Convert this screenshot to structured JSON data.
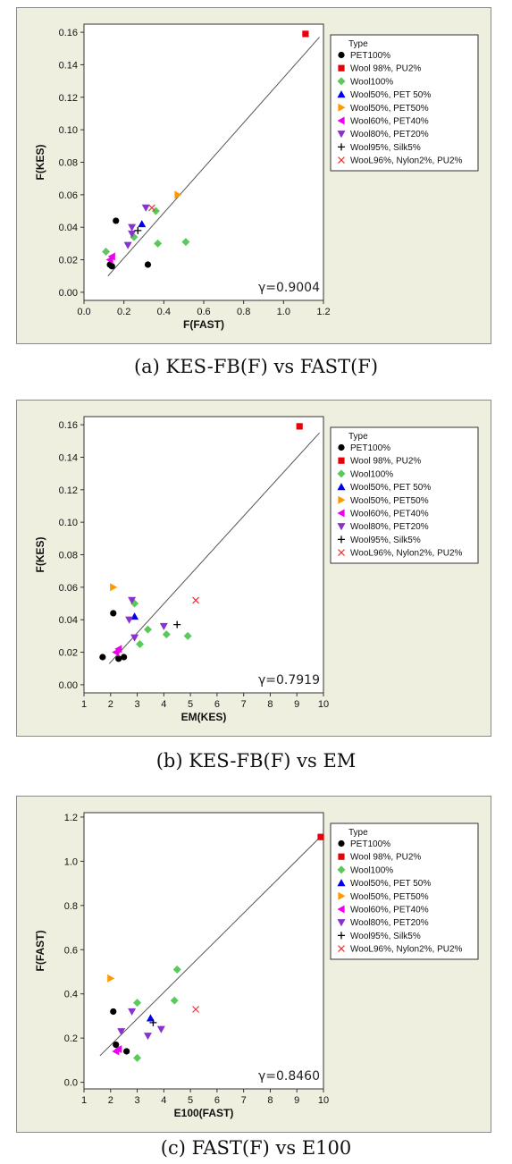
{
  "legend": {
    "title": "Type",
    "entries": [
      {
        "label": "PET100%",
        "marker": "circle",
        "color": "#000000"
      },
      {
        "label": "Wool 98%, PU2%",
        "marker": "square",
        "color": "#e8000b"
      },
      {
        "label": "Wool100%",
        "marker": "diamond",
        "color": "#5bc85b"
      },
      {
        "label": "Wool50%, PET 50%",
        "marker": "triangle-up",
        "color": "#0000ee"
      },
      {
        "label": "Wool50%, PET50%",
        "marker": "triangle-right",
        "color": "#ff9900"
      },
      {
        "label": "Wool60%, PET40%",
        "marker": "triangle-left",
        "color": "#ee00ee"
      },
      {
        "label": "Wool80%, PET20%",
        "marker": "triangle-down",
        "color": "#8833cc"
      },
      {
        "label": "Wool95%, Silk5%",
        "marker": "plus",
        "color": "#000000"
      },
      {
        "label": "WooL96%, Nylon2%, PU2%",
        "marker": "x",
        "color": "#ee3333"
      }
    ]
  },
  "chart_data": [
    {
      "id": "a",
      "type": "scatter",
      "caption": "(a) KES-FB(F) vs FAST(F)",
      "xlabel": "F(FAST)",
      "ylabel": "F(KES)",
      "annotation": "γ=0.9004",
      "xlim": [
        0,
        1.2
      ],
      "ylim": [
        -0.005,
        0.165
      ],
      "xticks": [
        "0.0",
        "0.2",
        "0.4",
        "0.6",
        "0.8",
        "1.0",
        "1.2"
      ],
      "yticks": [
        "0.00",
        "0.02",
        "0.04",
        "0.06",
        "0.08",
        "0.10",
        "0.12",
        "0.14",
        "0.16"
      ],
      "fit_line": {
        "x": [
          0.12,
          1.18
        ],
        "y": [
          0.01,
          0.157
        ]
      },
      "series": [
        {
          "name": "PET100%",
          "points": [
            [
              0.13,
              0.017
            ],
            [
              0.14,
              0.016
            ],
            [
              0.16,
              0.044
            ],
            [
              0.32,
              0.017
            ]
          ]
        },
        {
          "name": "Wool 98%, PU2%",
          "points": [
            [
              1.11,
              0.159
            ]
          ]
        },
        {
          "name": "Wool100%",
          "points": [
            [
              0.11,
              0.025
            ],
            [
              0.36,
              0.05
            ],
            [
              0.37,
              0.03
            ],
            [
              0.51,
              0.031
            ],
            [
              0.25,
              0.034
            ]
          ]
        },
        {
          "name": "Wool50%, PET 50%",
          "points": [
            [
              0.29,
              0.042
            ]
          ]
        },
        {
          "name": "Wool50%, PET50%",
          "points": [
            [
              0.47,
              0.06
            ]
          ]
        },
        {
          "name": "Wool60%, PET40%",
          "points": [
            [
              0.13,
              0.02
            ],
            [
              0.14,
              0.022
            ]
          ]
        },
        {
          "name": "Wool80%, PET20%",
          "points": [
            [
              0.22,
              0.029
            ],
            [
              0.24,
              0.04
            ],
            [
              0.31,
              0.052
            ],
            [
              0.24,
              0.036
            ]
          ]
        },
        {
          "name": "Wool95%, Silk5%",
          "points": [
            [
              0.27,
              0.038
            ]
          ]
        },
        {
          "name": "WooL96%, Nylon2%, PU2%",
          "points": [
            [
              0.34,
              0.052
            ]
          ]
        }
      ]
    },
    {
      "id": "b",
      "type": "scatter",
      "caption": "(b) KES-FB(F) vs EM",
      "xlabel": "EM(KES)",
      "ylabel": "F(KES)",
      "annotation": "γ=0.7919",
      "xlim": [
        1,
        10
      ],
      "ylim": [
        -0.005,
        0.165
      ],
      "xticks": [
        "1",
        "2",
        "3",
        "4",
        "5",
        "6",
        "7",
        "8",
        "9",
        "10"
      ],
      "yticks": [
        "0.00",
        "0.02",
        "0.04",
        "0.06",
        "0.08",
        "0.10",
        "0.12",
        "0.14",
        "0.16"
      ],
      "fit_line": {
        "x": [
          1.95,
          9.85
        ],
        "y": [
          0.013,
          0.155
        ]
      },
      "series": [
        {
          "name": "PET100%",
          "points": [
            [
              1.7,
              0.017
            ],
            [
              2.1,
              0.044
            ],
            [
              2.3,
              0.016
            ],
            [
              2.5,
              0.017
            ]
          ]
        },
        {
          "name": "Wool 98%, PU2%",
          "points": [
            [
              9.1,
              0.159
            ]
          ]
        },
        {
          "name": "Wool100%",
          "points": [
            [
              2.9,
              0.05
            ],
            [
              3.1,
              0.025
            ],
            [
              3.4,
              0.034
            ],
            [
              4.1,
              0.031
            ],
            [
              4.9,
              0.03
            ]
          ]
        },
        {
          "name": "Wool50%, PET 50%",
          "points": [
            [
              2.9,
              0.042
            ]
          ]
        },
        {
          "name": "Wool50%, PET50%",
          "points": [
            [
              2.1,
              0.06
            ]
          ]
        },
        {
          "name": "Wool60%, PET40%",
          "points": [
            [
              2.2,
              0.02
            ],
            [
              2.3,
              0.022
            ]
          ]
        },
        {
          "name": "Wool80%, PET20%",
          "points": [
            [
              2.7,
              0.04
            ],
            [
              2.8,
              0.052
            ],
            [
              2.9,
              0.029
            ],
            [
              4.0,
              0.036
            ]
          ]
        },
        {
          "name": "Wool95%, Silk5%",
          "points": [
            [
              4.5,
              0.037
            ]
          ]
        },
        {
          "name": "WooL96%, Nylon2%, PU2%",
          "points": [
            [
              5.2,
              0.052
            ]
          ]
        }
      ]
    },
    {
      "id": "c",
      "type": "scatter",
      "caption": "(c) FAST(F) vs E100",
      "xlabel": "E100(FAST)",
      "ylabel": "F(FAST)",
      "annotation": "γ=0.8460",
      "xlim": [
        1,
        10
      ],
      "ylim": [
        -0.03,
        1.22
      ],
      "xticks": [
        "1",
        "2",
        "3",
        "4",
        "5",
        "6",
        "7",
        "8",
        "9",
        "10"
      ],
      "yticks": [
        "0.0",
        "0.2",
        "0.4",
        "0.6",
        "0.8",
        "1.0",
        "1.2"
      ],
      "fit_line": {
        "x": [
          1.6,
          9.8
        ],
        "y": [
          0.12,
          1.1
        ]
      },
      "series": [
        {
          "name": "PET100%",
          "points": [
            [
              2.1,
              0.32
            ],
            [
              2.2,
              0.17
            ],
            [
              2.6,
              0.14
            ]
          ]
        },
        {
          "name": "Wool 98%, PU2%",
          "points": [
            [
              9.9,
              1.11
            ]
          ]
        },
        {
          "name": "Wool100%",
          "points": [
            [
              3.0,
              0.36
            ],
            [
              3.0,
              0.11
            ],
            [
              4.4,
              0.37
            ],
            [
              4.5,
              0.51
            ]
          ]
        },
        {
          "name": "Wool50%, PET 50%",
          "points": [
            [
              3.5,
              0.29
            ]
          ]
        },
        {
          "name": "Wool50%, PET50%",
          "points": [
            [
              2.0,
              0.47
            ]
          ]
        },
        {
          "name": "Wool60%, PET40%",
          "points": [
            [
              2.2,
              0.14
            ],
            [
              2.3,
              0.15
            ]
          ]
        },
        {
          "name": "Wool80%, PET20%",
          "points": [
            [
              2.4,
              0.23
            ],
            [
              2.8,
              0.32
            ],
            [
              3.4,
              0.21
            ],
            [
              3.9,
              0.24
            ]
          ]
        },
        {
          "name": "Wool95%, Silk5%",
          "points": [
            [
              3.6,
              0.27
            ]
          ]
        },
        {
          "name": "WooL96%, Nylon2%, PU2%",
          "points": [
            [
              5.2,
              0.33
            ]
          ]
        }
      ]
    }
  ]
}
